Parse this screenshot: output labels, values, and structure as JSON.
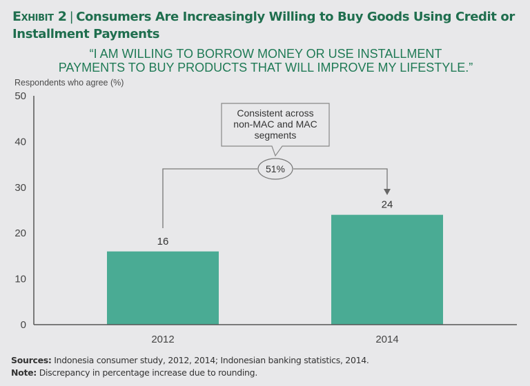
{
  "header": {
    "exhibit": "Exhibit 2",
    "title": "Consumers Are Increasingly Willing to Buy Goods Using Credit or Installment Payments",
    "quote_line1": "“I AM WILLING TO BORROW MONEY OR USE INSTALLMENT",
    "quote_line2": "PAYMENTS TO BUY PRODUCTS THAT WILL IMPROVE MY LIFESTYLE.”"
  },
  "colors": {
    "title": "#1f6e4e",
    "bar": "#4aab94",
    "axis": "#555555",
    "background": "#e8e8ea"
  },
  "chart_data": {
    "type": "bar",
    "title": "Consumers Are Increasingly Willing to Buy Goods Using Credit or Installment Payments",
    "subtitle": "“I am willing to borrow money or use installment payments to buy products that will improve my lifestyle.”",
    "xlabel": "",
    "ylabel": "Respondents who agree (%)",
    "categories": [
      "2012",
      "2014"
    ],
    "values": [
      16,
      24
    ],
    "data_labels": [
      "16",
      "24"
    ],
    "ylim": [
      0,
      50
    ],
    "yticks": [
      0,
      10,
      20,
      30,
      40,
      50
    ],
    "grid": false,
    "legend": "none",
    "annotations": {
      "growth_label": "51%",
      "callout_lines": [
        "Consistent across",
        "non-MAC and MAC",
        "segments"
      ],
      "arrow_from": "2012",
      "arrow_to": "2014"
    }
  },
  "footer": {
    "sources_label": "Sources:",
    "sources_text": " Indonesia consumer study, 2012, 2014; Indonesian banking statistics, 2014.",
    "note_label": "Note:",
    "note_text": " Discrepancy in percentage increase due to rounding."
  }
}
